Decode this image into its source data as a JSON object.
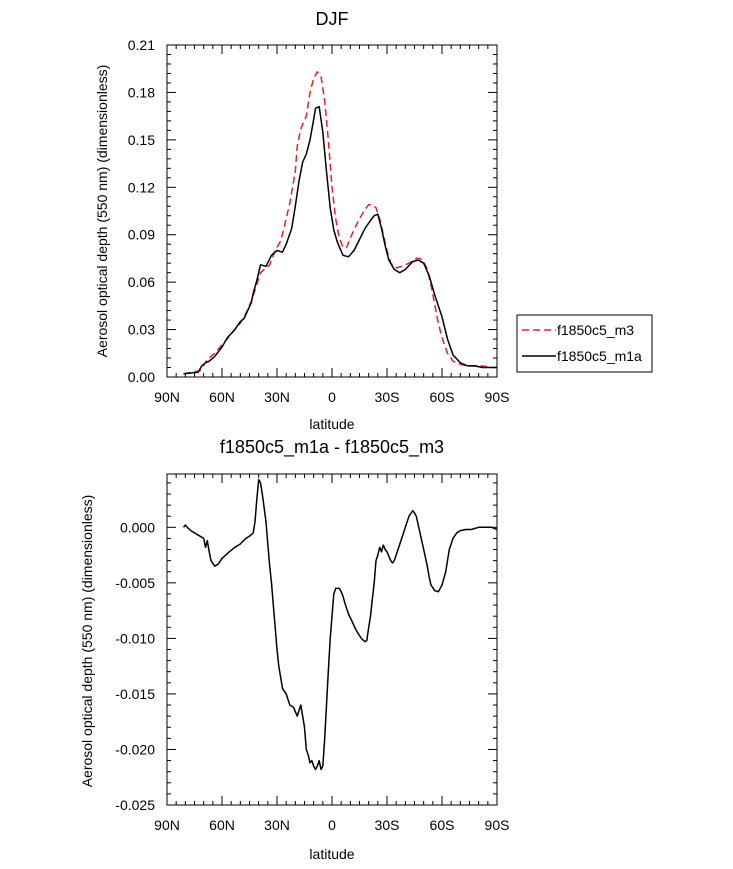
{
  "chart_data": [
    {
      "type": "line",
      "title": "DJF",
      "xlabel": "latitude",
      "ylabel": "Aerosol optical depth (550 nm) (dimensionless)",
      "xlim": [
        90,
        -90
      ],
      "ylim": [
        0,
        0.21
      ],
      "x_ticks": [
        90,
        60,
        30,
        0,
        -30,
        -60,
        -90
      ],
      "x_tick_labels": [
        "90N",
        "60N",
        "30N",
        "0",
        "30S",
        "60S",
        "90S"
      ],
      "y_ticks": [
        0,
        0.03,
        0.06,
        0.09,
        0.12,
        0.15,
        0.18,
        0.21
      ],
      "y_tick_labels": [
        "0.00",
        "0.03",
        "0.06",
        "0.09",
        "0.12",
        "0.15",
        "0.18",
        "0.21"
      ],
      "legend_placement": "outside-right",
      "series": [
        {
          "name": "f1850c5_m3",
          "color": "#e8202a",
          "dash": "dashed",
          "x": [
            81,
            72,
            68,
            64,
            58,
            50,
            47,
            44,
            42,
            39,
            37,
            34,
            31,
            28,
            26,
            23,
            20,
            19,
            17,
            14,
            12,
            10,
            8,
            6,
            4,
            2,
            0,
            -2,
            -4,
            -6,
            -8,
            -10,
            -12,
            -14,
            -16,
            -18,
            -20,
            -22,
            -24,
            -26,
            -28,
            -30,
            -32,
            -35,
            -38,
            -42,
            -46,
            -48,
            -50,
            -52,
            -54,
            -56,
            -58,
            -60,
            -63,
            -66,
            -70,
            -74,
            -78,
            -82,
            -86,
            -90
          ],
          "y": [
            0.002,
            0.004,
            0.011,
            0.015,
            0.023,
            0.034,
            0.04,
            0.048,
            0.055,
            0.066,
            0.068,
            0.071,
            0.08,
            0.086,
            0.095,
            0.11,
            0.13,
            0.146,
            0.157,
            0.165,
            0.18,
            0.189,
            0.193,
            0.19,
            0.175,
            0.15,
            0.12,
            0.1,
            0.088,
            0.082,
            0.082,
            0.088,
            0.093,
            0.098,
            0.102,
            0.106,
            0.109,
            0.109,
            0.107,
            0.1,
            0.09,
            0.08,
            0.072,
            0.069,
            0.07,
            0.072,
            0.075,
            0.075,
            0.073,
            0.068,
            0.058,
            0.046,
            0.034,
            0.025,
            0.015,
            0.01,
            0.008,
            0.007,
            0.007,
            0.007,
            0.006,
            0.006
          ]
        },
        {
          "name": "f1850c5_m1a",
          "color": "#000000",
          "dash": "solid",
          "x": [
            81,
            73,
            71,
            69,
            67,
            64,
            60,
            57,
            53,
            50,
            48,
            46,
            44,
            43,
            41,
            39,
            36,
            33,
            30,
            27,
            25,
            22,
            20,
            18,
            16,
            14,
            12,
            10,
            9,
            7,
            5,
            3,
            1,
            -1,
            -3,
            -6,
            -9,
            -12,
            -15,
            -18,
            -21,
            -23,
            -25,
            -27,
            -29,
            -31,
            -34,
            -37,
            -40,
            -44,
            -47,
            -50,
            -53,
            -56,
            -60,
            -63,
            -66,
            -70,
            -74,
            -78,
            -82,
            -86,
            -90
          ],
          "y": [
            0.002,
            0.003,
            0.007,
            0.009,
            0.01,
            0.013,
            0.019,
            0.025,
            0.03,
            0.035,
            0.037,
            0.042,
            0.047,
            0.053,
            0.061,
            0.071,
            0.07,
            0.077,
            0.08,
            0.079,
            0.084,
            0.094,
            0.108,
            0.124,
            0.136,
            0.141,
            0.15,
            0.163,
            0.17,
            0.171,
            0.155,
            0.13,
            0.107,
            0.093,
            0.085,
            0.077,
            0.076,
            0.08,
            0.087,
            0.094,
            0.099,
            0.102,
            0.103,
            0.094,
            0.083,
            0.074,
            0.068,
            0.066,
            0.068,
            0.073,
            0.074,
            0.072,
            0.064,
            0.052,
            0.038,
            0.024,
            0.014,
            0.009,
            0.007,
            0.007,
            0.006,
            0.006,
            0.006
          ]
        }
      ]
    },
    {
      "type": "line",
      "title": "f1850c5_m1a - f1850c5_m3",
      "xlabel": "latitude",
      "ylabel": "Aerosol optical depth (550 nm) (dimensionless)",
      "xlim": [
        90,
        -90
      ],
      "ylim": [
        -0.025,
        0.0048
      ],
      "x_ticks": [
        90,
        60,
        30,
        0,
        -30,
        -60,
        -90
      ],
      "x_tick_labels": [
        "90N",
        "60N",
        "30N",
        "0",
        "30S",
        "60S",
        "90S"
      ],
      "y_ticks": [
        0,
        -0.005,
        -0.01,
        -0.015,
        -0.02,
        -0.025
      ],
      "y_tick_labels": [
        "0.000",
        "-0.005",
        "-0.010",
        "-0.015",
        "-0.020",
        "-0.025"
      ],
      "series": [
        {
          "color": "#000000",
          "dash": "solid",
          "x": [
            81,
            80,
            79,
            77,
            75,
            72,
            70,
            69,
            68,
            67,
            66,
            64,
            62,
            60,
            58,
            56,
            53,
            50,
            47,
            45,
            43,
            42,
            41,
            40,
            39,
            38,
            36,
            35,
            34,
            33,
            32,
            31,
            30,
            29,
            27,
            25,
            23,
            21,
            19,
            17,
            15,
            14,
            13,
            12,
            11,
            10,
            9,
            8,
            7,
            6,
            5,
            4,
            3,
            2,
            1,
            0,
            -1,
            -2,
            -3,
            -4,
            -5,
            -6,
            -7,
            -9,
            -11,
            -13,
            -14,
            -16,
            -18,
            -19,
            -20,
            -21,
            -22,
            -23,
            -24,
            -25,
            -26,
            -27,
            -28,
            -29,
            -30,
            -32,
            -33,
            -34,
            -36,
            -38,
            -40,
            -42,
            -44,
            -45,
            -46,
            -48,
            -50,
            -52,
            -53,
            -54,
            -56,
            -58,
            -60,
            -62,
            -64,
            -66,
            -68,
            -70,
            -73,
            -76,
            -80,
            -84,
            -87,
            -90
          ],
          "y": [
            0.0,
            0.0002,
            0.0,
            -0.0003,
            -0.0005,
            -0.0008,
            -0.001,
            -0.0018,
            -0.0012,
            -0.0022,
            -0.003,
            -0.0035,
            -0.0033,
            -0.0028,
            -0.0025,
            -0.0022,
            -0.0018,
            -0.0015,
            -0.001,
            -0.0008,
            -0.0005,
            0.0005,
            0.0025,
            0.0043,
            0.004,
            0.003,
            0.0005,
            -0.0015,
            -0.0035,
            -0.005,
            -0.007,
            -0.009,
            -0.011,
            -0.0125,
            -0.0145,
            -0.015,
            -0.016,
            -0.0162,
            -0.017,
            -0.016,
            -0.018,
            -0.02,
            -0.0205,
            -0.0212,
            -0.021,
            -0.0215,
            -0.0218,
            -0.0215,
            -0.021,
            -0.0218,
            -0.0215,
            -0.019,
            -0.016,
            -0.013,
            -0.01,
            -0.008,
            -0.006,
            -0.0055,
            -0.0055,
            -0.0055,
            -0.0058,
            -0.0062,
            -0.0068,
            -0.0078,
            -0.0085,
            -0.0092,
            -0.0095,
            -0.01,
            -0.0103,
            -0.0102,
            -0.009,
            -0.008,
            -0.0065,
            -0.005,
            -0.003,
            -0.0025,
            -0.0018,
            -0.0022,
            -0.0016,
            -0.002,
            -0.0022,
            -0.003,
            -0.0032,
            -0.003,
            -0.002,
            -0.001,
            0.0,
            0.001,
            0.0015,
            0.0013,
            0.001,
            -0.0005,
            -0.002,
            -0.0035,
            -0.0045,
            -0.0052,
            -0.0057,
            -0.0058,
            -0.0052,
            -0.004,
            -0.002,
            -0.001,
            -0.0005,
            -0.0003,
            -0.0002,
            -0.0002,
            0.0,
            0.0,
            0.0,
            -0.0002
          ]
        }
      ]
    }
  ]
}
